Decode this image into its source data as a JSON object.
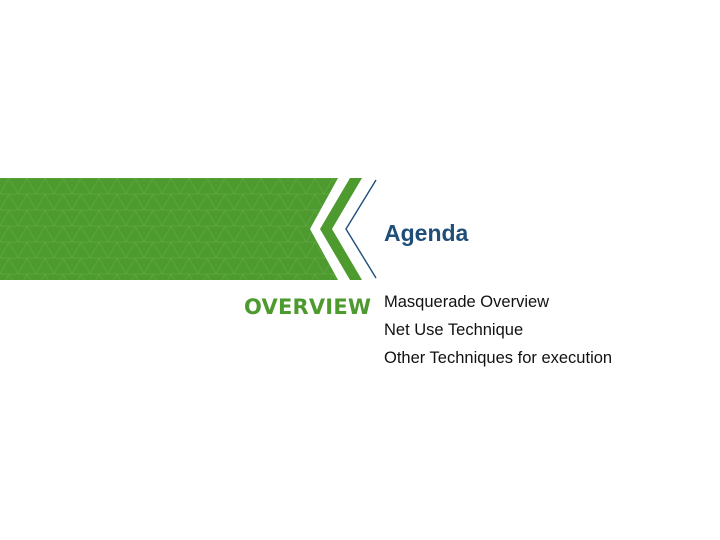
{
  "slide": {
    "title": "Agenda",
    "section_label": "OVERVIEW",
    "agenda_items": [
      "Masquerade Overview",
      "Net Use Technique",
      "Other Techniques for execution"
    ]
  },
  "colors": {
    "banner_green": "#4d9a2e",
    "banner_green_dark": "#3f8a26",
    "chevron_stroke": "#1f4e79",
    "title_color": "#1f4e79",
    "label_color": "#4d9a2e",
    "text_color": "#111111"
  }
}
